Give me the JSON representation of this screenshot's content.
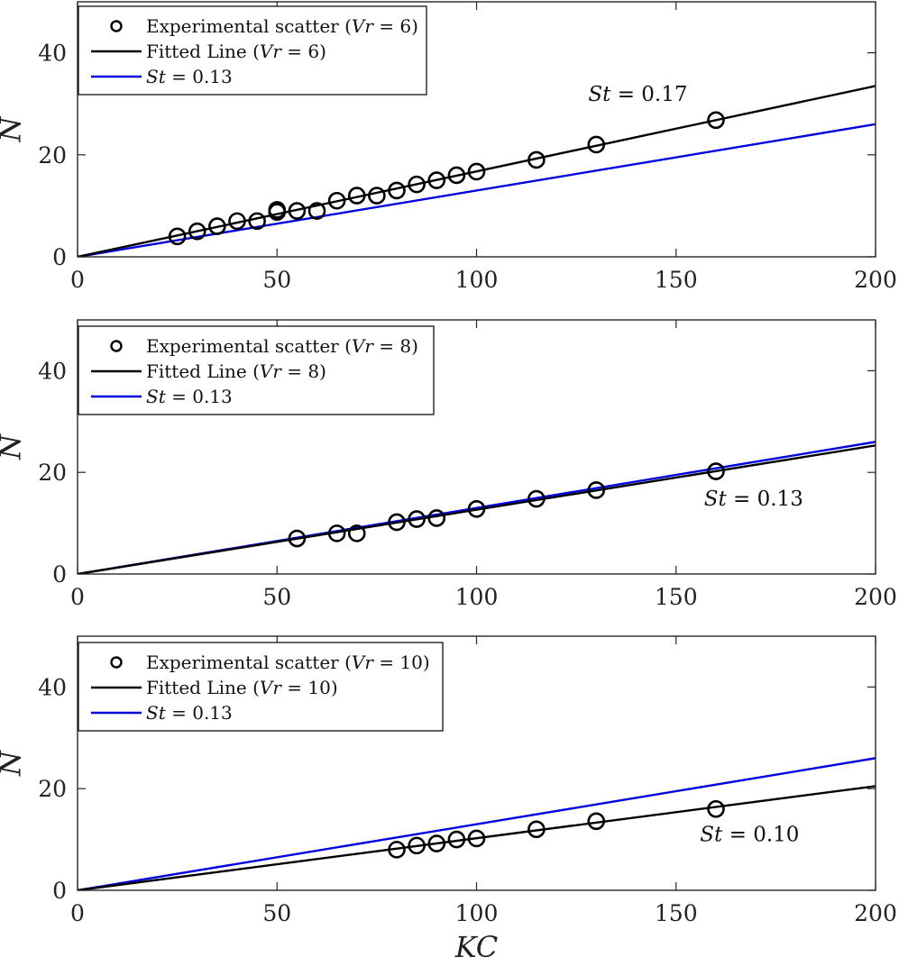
{
  "colors": {
    "scatter": "#000000",
    "fitted": "#000000",
    "reference": "#0000dd",
    "axes": "#262626"
  },
  "chart_data": [
    {
      "type": "scatter",
      "xlabel": "KC",
      "ylabel": "N",
      "xlim": [
        0,
        200
      ],
      "ylim": [
        0,
        50
      ],
      "xticks": [
        0,
        50,
        100,
        150,
        200
      ],
      "yticks": [
        0,
        20,
        40
      ],
      "legend_placement": "top-left",
      "series": [
        {
          "name": "Experimental scatter (Vr = 6)",
          "kind": "markers",
          "x": [
            25,
            30,
            35,
            40,
            45,
            50,
            50,
            55,
            60,
            65,
            70,
            75,
            80,
            85,
            90,
            95,
            100,
            115,
            130,
            160
          ],
          "y": [
            4,
            5,
            6,
            7,
            7,
            8.8,
            9.2,
            9,
            9,
            11,
            12,
            12,
            13,
            14.2,
            15,
            16,
            16.7,
            19,
            22,
            26.8
          ]
        },
        {
          "name": "Fitted Line (Vr = 6)",
          "kind": "line",
          "x": [
            0,
            200
          ],
          "y": [
            0,
            33.5
          ]
        },
        {
          "name": "St = 0.13",
          "kind": "line",
          "x": [
            0,
            200
          ],
          "y": [
            0,
            26
          ]
        }
      ],
      "annotation": {
        "text": "St = 0.17",
        "x": 128,
        "y": 30.6
      }
    },
    {
      "type": "scatter",
      "xlabel": "KC",
      "ylabel": "N",
      "xlim": [
        0,
        200
      ],
      "ylim": [
        0,
        50
      ],
      "xticks": [
        0,
        50,
        100,
        150,
        200
      ],
      "yticks": [
        0,
        20,
        40
      ],
      "legend_placement": "top-left",
      "series": [
        {
          "name": "Experimental scatter (Vr = 8)",
          "kind": "markers",
          "x": [
            55,
            65,
            70,
            80,
            85,
            90,
            100,
            115,
            130,
            160
          ],
          "y": [
            7,
            8,
            8,
            10.2,
            10.8,
            11,
            12.8,
            14.8,
            16.5,
            20.2
          ]
        },
        {
          "name": "Fitted Line (Vr = 8)",
          "kind": "line",
          "x": [
            0,
            200
          ],
          "y": [
            0,
            25.3
          ]
        },
        {
          "name": "St = 0.13",
          "kind": "line",
          "x": [
            0,
            200
          ],
          "y": [
            0,
            26
          ]
        }
      ],
      "annotation": {
        "text": "St = 0.13",
        "x": 157,
        "y": 13.5
      }
    },
    {
      "type": "scatter",
      "xlabel": "KC",
      "ylabel": "N",
      "xlim": [
        0,
        200
      ],
      "ylim": [
        0,
        50
      ],
      "xticks": [
        0,
        50,
        100,
        150,
        200
      ],
      "yticks": [
        0,
        20,
        40
      ],
      "legend_placement": "top-left",
      "series": [
        {
          "name": "Experimental scatter (Vr = 10)",
          "kind": "markers",
          "x": [
            80,
            85,
            90,
            95,
            100,
            115,
            130,
            160
          ],
          "y": [
            8,
            8.8,
            9.2,
            10,
            10.2,
            12,
            13.6,
            16
          ]
        },
        {
          "name": "Fitted Line (Vr = 10)",
          "kind": "line",
          "x": [
            0,
            200
          ],
          "y": [
            0,
            20.5
          ]
        },
        {
          "name": "St = 0.13",
          "kind": "line",
          "x": [
            0,
            200
          ],
          "y": [
            0,
            26
          ]
        }
      ],
      "annotation": {
        "text": "St = 0.10",
        "x": 156,
        "y": 9.7
      }
    }
  ]
}
